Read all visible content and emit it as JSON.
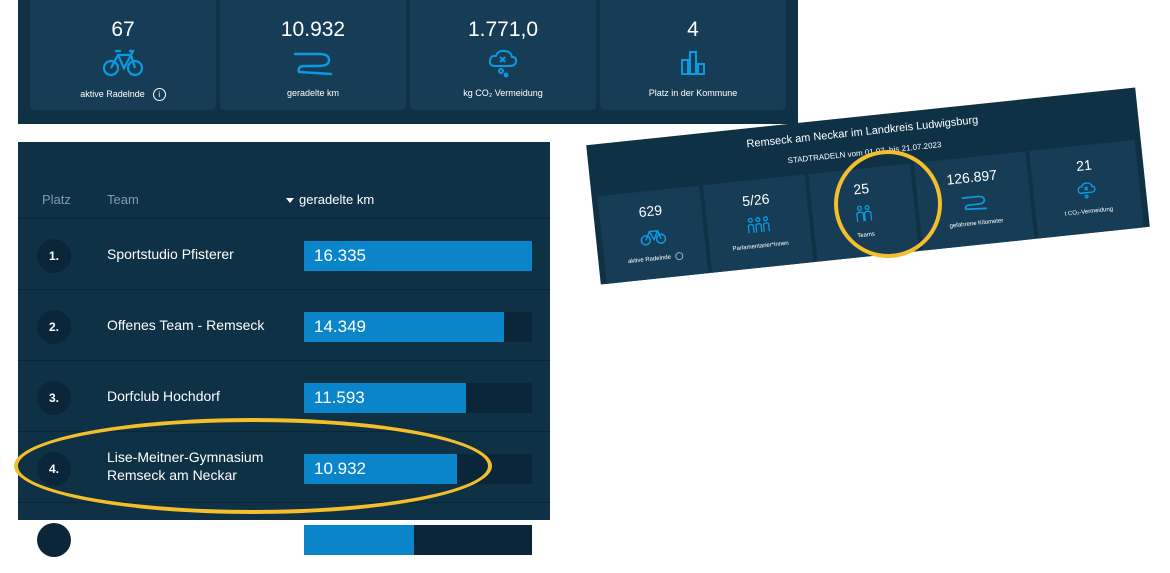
{
  "stats": [
    {
      "value": "67",
      "label": "aktive Radelnde",
      "icon": "bicycle-icon",
      "info": "i"
    },
    {
      "value": "10.932",
      "label": "geradelte km",
      "icon": "route-icon"
    },
    {
      "value": "1.771,0",
      "label": "kg CO₂ Vermeidung",
      "icon": "co2-cloud-icon"
    },
    {
      "value": "4",
      "label": "Platz in der Kommune",
      "icon": "bar-chart-icon"
    }
  ],
  "ranking": {
    "headers": {
      "rank": "Platz",
      "team": "Team",
      "km": "geradelte km"
    },
    "rows": [
      {
        "rank": "1.",
        "team": "Sportstudio Pfisterer",
        "km": "16.335",
        "fill": 1.0
      },
      {
        "rank": "2.",
        "team": "Offenes Team - Remseck",
        "km": "14.349",
        "fill": 0.878
      },
      {
        "rank": "3.",
        "team": "Dorfclub Hochdorf",
        "km": "11.593",
        "fill": 0.71
      },
      {
        "rank": "4.",
        "team": "Lise-Meitner-Gymnasium Remseck am Neckar",
        "km": "10.932",
        "fill": 0.669
      }
    ]
  },
  "city_card": {
    "title": "Remseck am Neckar im Landkreis Ludwigsburg",
    "subtitle": "STADTRADELN vom 01.07. bis 21.07.2023",
    "items": [
      {
        "value": "629",
        "label": "aktive Radelnde",
        "icon": "bicycle-icon"
      },
      {
        "value": "5/26",
        "label": "Parlamentarier*innen",
        "icon": "people-group-icon"
      },
      {
        "value": "25",
        "label": "Teams",
        "icon": "team-icon"
      },
      {
        "value": "126.897",
        "label": "gefahrene Kilometer",
        "icon": "route-icon"
      },
      {
        "value": "21",
        "label": "t CO₂-Vermeidung",
        "icon": "co2-cloud-icon"
      }
    ]
  },
  "colors": {
    "panel": "#0f3146",
    "card": "#163d55",
    "bar": "#0a85c9",
    "highlight": "#f4bf2a"
  }
}
